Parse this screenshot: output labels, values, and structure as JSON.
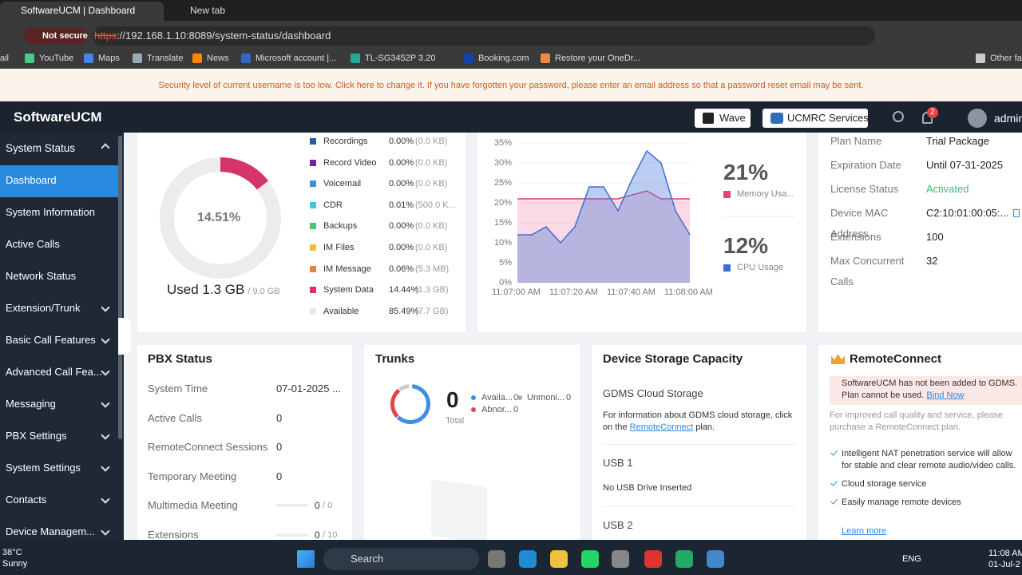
{
  "browser": {
    "tabs": [
      "SoftwareUCM | Dashboard",
      "New tab"
    ],
    "not_secure": "Not secure",
    "url_scheme": "https",
    "url_rest": "://192.168.1.10:8089/system-status/dashboard",
    "bookmarks": [
      "ail",
      "YouTube",
      "Maps",
      "Translate",
      "News",
      "Microsoft account |...",
      "TL-SG3452P 3.20",
      "Booking.com",
      "Restore your OneDr...",
      "Other fav"
    ]
  },
  "banner": "Security level of current username is too low. Click here to change it. If you have forgotten your password, please enter an email address so that a password reset email may be sent.",
  "header": {
    "brand": "SoftwareUCM",
    "buttons": [
      "Wave",
      "UCMRC Services"
    ],
    "notifications": "2",
    "user": "admin"
  },
  "sidebar": {
    "items": [
      "System Status",
      "Dashboard",
      "System Information",
      "Active Calls",
      "Network Status",
      "Extension/Trunk",
      "Basic Call Features",
      "Advanced Call Fea...",
      "Messaging",
      "PBX Settings",
      "System Settings",
      "Contacts",
      "Device Managem..."
    ]
  },
  "storage": {
    "donut": {
      "value": 14.51,
      "label": "14.51%"
    },
    "used": "Used 1.3 GB",
    "total": "/ 9.0 GB",
    "legend": [
      {
        "name": "Recordings",
        "percent": "0.00%",
        "size": "(0.0 KB)",
        "color": "#1f5fa6"
      },
      {
        "name": "Record Video",
        "percent": "0.00%",
        "size": "(0.0 KB)",
        "color": "#7b1fa2"
      },
      {
        "name": "Voicemail",
        "percent": "0.00%",
        "size": "(0.0 KB)",
        "color": "#3d8fe0"
      },
      {
        "name": "CDR",
        "percent": "0.01%",
        "size": "(500.0 K...",
        "color": "#3cc8e0"
      },
      {
        "name": "Backups",
        "percent": "0.00%",
        "size": "(0.0 KB)",
        "color": "#4cc86a"
      },
      {
        "name": "IM Files",
        "percent": "0.00%",
        "size": "(0.0 KB)",
        "color": "#f2c233"
      },
      {
        "name": "IM Message",
        "percent": "0.06%",
        "size": "(5.3 MB)",
        "color": "#e8833a"
      },
      {
        "name": "System Data",
        "percent": "14.44%",
        "size": "(1.3 GB)",
        "color": "#d6336c"
      },
      {
        "name": "Available",
        "percent": "85.49%",
        "size": "(7.7 GB)",
        "color": "#e8e8e8"
      }
    ]
  },
  "resource_chart": {
    "type": "line",
    "categories": [
      "11:07:00 AM",
      null,
      null,
      null,
      "11:07:20 AM",
      null,
      null,
      null,
      "11:07:40 AM",
      null,
      null,
      null,
      "11:08:00 AM"
    ],
    "ylim": [
      0,
      35
    ],
    "yticks": [
      {
        "value": 0,
        "label": "0%"
      },
      {
        "value": 5,
        "label": "5%"
      },
      {
        "value": 10,
        "label": "10%"
      },
      {
        "value": 15,
        "label": "15%"
      },
      {
        "value": 20,
        "label": "20%"
      },
      {
        "value": 25,
        "label": "25%"
      },
      {
        "value": 30,
        "label": "30%"
      },
      {
        "value": 35,
        "label": "35%"
      }
    ],
    "grid": true,
    "series": [
      {
        "name": "Memory Usa...",
        "current": "21%",
        "color": "#e0457b",
        "values": [
          21,
          21,
          21,
          21,
          21,
          21,
          21,
          21,
          22,
          23,
          21,
          21,
          21
        ]
      },
      {
        "name": "CPU Usage",
        "current": "12%",
        "color": "#3d6fd8",
        "values": [
          12,
          12,
          14,
          10,
          14,
          24,
          24,
          18,
          26,
          33,
          30,
          18,
          12
        ]
      }
    ]
  },
  "plan": {
    "rows": [
      {
        "label": "Plan Name",
        "value": "Trial Package"
      },
      {
        "label": "Expiration Date",
        "value": "Until 07-31-2025"
      },
      {
        "label": "License Status",
        "value": "Activated"
      },
      {
        "label": "Device MAC Address",
        "value": "C2:10:01:00:05:..."
      },
      {
        "label": "Extensions",
        "value": "100"
      },
      {
        "label": "Max Concurrent Calls",
        "value": "32"
      }
    ]
  },
  "pbx": {
    "title": "PBX Status",
    "rows": [
      {
        "label": "System Time",
        "value": "07-01-2025 ..."
      },
      {
        "label": "Active Calls",
        "value": "0"
      },
      {
        "label": "RemoteConnect Sessions",
        "value": "0"
      },
      {
        "label": "Temporary Meeting",
        "value": "0"
      },
      {
        "label": "Multimedia Meeting",
        "value": "0",
        "total": "/ 0"
      },
      {
        "label": "Extensions",
        "value": "0",
        "total": "/ 10"
      }
    ]
  },
  "trunks": {
    "title": "Trunks",
    "total": "0",
    "total_label": "Total",
    "legend": [
      {
        "name": "Availa...",
        "value": "0"
      },
      {
        "name": "Unmoni...",
        "value": "0"
      },
      {
        "name": "Abnor...",
        "value": "0"
      }
    ]
  },
  "device_storage": {
    "title": "Device Storage Capacity",
    "gdms_title": "GDMS Cloud Storage",
    "gdms_text": "For information about GDMS cloud storage, click on the",
    "gdms_link": "RemoteConnect",
    "gdms_tail": "plan.",
    "usb1": "USB 1",
    "usb1_status": "No USB Drive Inserted",
    "usb2": "USB 2"
  },
  "remote_connect": {
    "title": "RemoteConnect",
    "alert": "SoftwareUCM has not been added to GDMS. Plan cannot be used.",
    "bind": "Bind Now",
    "info": "For improved call quality and service, please purchase a RemoteConnect plan.",
    "features": [
      "Intelligent NAT penetration service will allow for stable and clear remote audio/video calls.",
      "Cloud storage service",
      "Easily manage remote devices"
    ],
    "learn_more": "Learn more"
  },
  "taskbar": {
    "temperature": "38°C",
    "weather": "Sunny",
    "search": "Search",
    "language": "ENG",
    "time": "11:08 AM",
    "date": "01-Jul-2"
  }
}
